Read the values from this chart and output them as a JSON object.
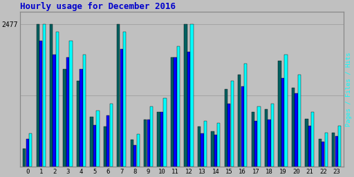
{
  "title": "Hourly usage for December 2016",
  "title_color": "#0000cc",
  "title_fontsize": 9,
  "background_color": "#c0c0c0",
  "plot_bg_color": "#c0c0c0",
  "ylabel_right": "Pages / Files / Hits",
  "hours": [
    0,
    1,
    2,
    3,
    4,
    5,
    6,
    7,
    8,
    9,
    10,
    11,
    12,
    13,
    14,
    15,
    16,
    17,
    18,
    19,
    20,
    21,
    22,
    23
  ],
  "pages": [
    320,
    2477,
    2477,
    1700,
    1500,
    870,
    700,
    2477,
    480,
    820,
    950,
    1900,
    2477,
    700,
    620,
    1350,
    1600,
    950,
    1000,
    1850,
    1380,
    830,
    490,
    590
  ],
  "files": [
    490,
    2200,
    1950,
    1900,
    1700,
    730,
    900,
    2050,
    380,
    820,
    950,
    1900,
    2000,
    580,
    560,
    1100,
    1400,
    800,
    820,
    1550,
    1280,
    720,
    440,
    540
  ],
  "hits": [
    580,
    2477,
    2350,
    2200,
    1950,
    980,
    1100,
    2350,
    570,
    1050,
    1200,
    2100,
    2477,
    800,
    760,
    1500,
    1800,
    1050,
    1100,
    1950,
    1600,
    950,
    600,
    720
  ],
  "pages_color": "#006060",
  "files_color": "#0000ff",
  "hits_color": "#00ffff",
  "bar_edge_color": "#000000",
  "ytick_label": "2477",
  "ytick_value": 2477,
  "ymax": 2700,
  "ymin": 0,
  "grid_color": "#999999",
  "font_family": "monospace"
}
